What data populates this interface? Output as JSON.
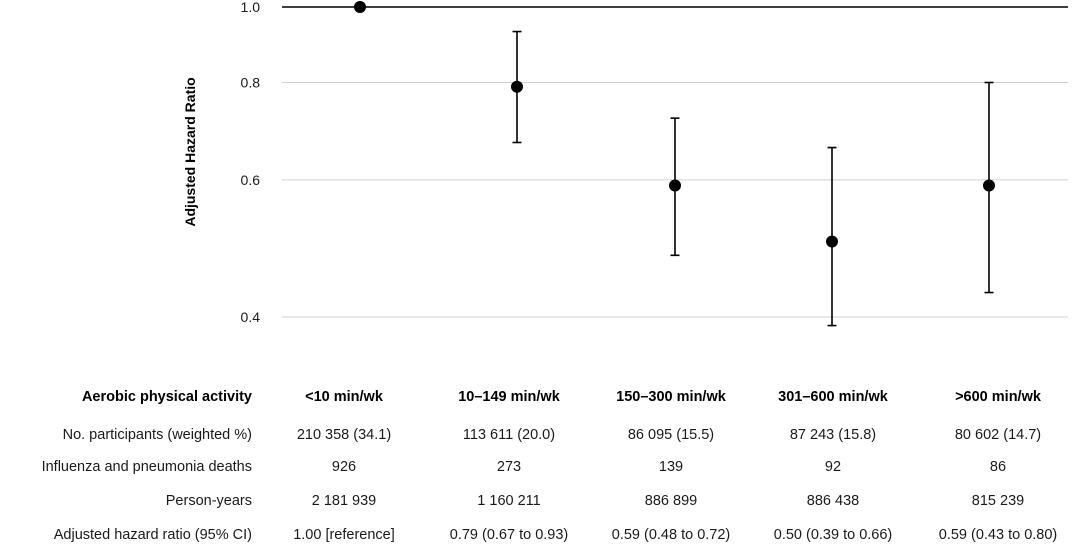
{
  "chart_data": {
    "type": "scatter",
    "subtype": "forest-plot-with-error-bars",
    "ylabel": "Adjusted Hazard Ratio",
    "yscale": "log",
    "ylim": [
      0.37,
      1.0
    ],
    "yticks": [
      1.0,
      0.8,
      0.6,
      0.4
    ],
    "ytick_labels": [
      "1.0",
      "0.8",
      "0.6",
      "0.4"
    ],
    "reference_line": 1.0,
    "grid": true,
    "categories": [
      "<10 min/wk",
      "10–149 min/wk",
      "150–300 min/wk",
      "301–600 min/wk",
      ">600 min/wk"
    ],
    "points": [
      {
        "category": "<10 min/wk",
        "hr": 1.0,
        "lower": null,
        "upper": null
      },
      {
        "category": "10–149 min/wk",
        "hr": 0.79,
        "lower": 0.67,
        "upper": 0.93
      },
      {
        "category": "150–300 min/wk",
        "hr": 0.59,
        "lower": 0.48,
        "upper": 0.72
      },
      {
        "category": "301–600 min/wk",
        "hr": 0.5,
        "lower": 0.39,
        "upper": 0.66
      },
      {
        "category": ">600 min/wk",
        "hr": 0.59,
        "lower": 0.43,
        "upper": 0.8
      }
    ]
  },
  "table": {
    "header": {
      "label": "Aerobic physical activity",
      "cols": [
        "<10 min/wk",
        "10–149 min/wk",
        "150–300 min/wk",
        "301–600 min/wk",
        ">600 min/wk"
      ]
    },
    "rows": [
      {
        "label": "No. participants (weighted %)",
        "values": [
          "210 358 (34.1)",
          "113 611 (20.0)",
          "86 095 (15.5)",
          "87 243 (15.8)",
          "80 602 (14.7)"
        ]
      },
      {
        "label": "Influenza and pneumonia deaths",
        "values": [
          "926",
          "273",
          "139",
          "92",
          "86"
        ]
      },
      {
        "label": "Person-years",
        "values": [
          "2 181 939",
          "1 160 211",
          "886 899",
          "886 438",
          "815 239"
        ]
      },
      {
        "label": "Adjusted hazard ratio (95% CI)",
        "values": [
          "1.00 [reference]",
          "0.79 (0.67 to 0.93)",
          "0.59 (0.48 to 0.72)",
          "0.50 (0.39 to 0.66)",
          "0.59 (0.43 to 0.80)"
        ]
      }
    ]
  },
  "colors": {
    "marker": "#000000",
    "grid": "#d0d0d0",
    "reference": "#000000",
    "divider": "#555555"
  }
}
